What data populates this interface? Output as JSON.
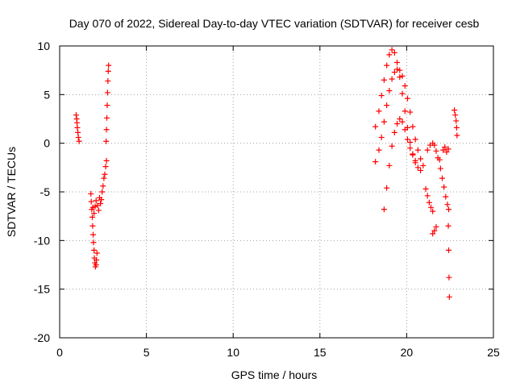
{
  "chart_data": {
    "type": "scatter",
    "title": "Day 070 of 2022, Sidereal Day-to-day VTEC variation (SDTVAR) for receiver cesb",
    "xlabel": "GPS time / hours",
    "ylabel": "SDTVAR / TECUs",
    "xlim": [
      0,
      25
    ],
    "ylim": [
      -20,
      10
    ],
    "xticks": [
      0,
      5,
      10,
      15,
      20,
      25
    ],
    "yticks": [
      -20,
      -15,
      -10,
      -5,
      0,
      5,
      10
    ],
    "grid": true,
    "marker": "+",
    "series": [
      {
        "name": "SDTVAR",
        "color": "#ff0000",
        "points": [
          [
            0.95,
            2.9
          ],
          [
            0.98,
            2.5
          ],
          [
            1.0,
            2.1
          ],
          [
            1.02,
            1.6
          ],
          [
            1.05,
            1.1
          ],
          [
            1.08,
            0.6
          ],
          [
            1.12,
            0.2
          ],
          [
            1.8,
            -5.2
          ],
          [
            1.82,
            -6.0
          ],
          [
            1.85,
            -6.8
          ],
          [
            1.88,
            -7.6
          ],
          [
            1.9,
            -8.5
          ],
          [
            1.93,
            -9.4
          ],
          [
            1.95,
            -10.2
          ],
          [
            1.98,
            -11.0
          ],
          [
            2.0,
            -11.8
          ],
          [
            2.03,
            -12.3
          ],
          [
            2.06,
            -12.7
          ],
          [
            2.1,
            -12.5
          ],
          [
            2.12,
            -12.0
          ],
          [
            2.15,
            -11.3
          ],
          [
            1.92,
            -6.6
          ],
          [
            1.98,
            -7.2
          ],
          [
            2.04,
            -6.5
          ],
          [
            2.1,
            -5.9
          ],
          [
            2.18,
            -6.4
          ],
          [
            2.25,
            -6.9
          ],
          [
            2.3,
            -5.6
          ],
          [
            2.35,
            -6.2
          ],
          [
            2.4,
            -5.8
          ],
          [
            2.45,
            -5.0
          ],
          [
            2.5,
            -4.4
          ],
          [
            2.55,
            -3.6
          ],
          [
            2.6,
            -3.2
          ],
          [
            2.65,
            -2.4
          ],
          [
            2.7,
            -1.8
          ],
          [
            2.68,
            0.2
          ],
          [
            2.7,
            1.4
          ],
          [
            2.72,
            2.6
          ],
          [
            2.74,
            3.9
          ],
          [
            2.76,
            5.2
          ],
          [
            2.78,
            6.4
          ],
          [
            2.8,
            7.4
          ],
          [
            2.82,
            8.0
          ],
          [
            18.2,
            -1.9
          ],
          [
            18.4,
            -0.7
          ],
          [
            18.55,
            0.6
          ],
          [
            18.7,
            2.2
          ],
          [
            18.85,
            3.9
          ],
          [
            19.0,
            5.4
          ],
          [
            19.15,
            6.6
          ],
          [
            19.3,
            7.3
          ],
          [
            19.45,
            7.6
          ],
          [
            19.6,
            7.5
          ],
          [
            19.75,
            6.9
          ],
          [
            19.9,
            5.9
          ],
          [
            20.05,
            4.6
          ],
          [
            20.2,
            3.2
          ],
          [
            20.35,
            1.7
          ],
          [
            20.5,
            0.4
          ],
          [
            20.65,
            -0.7
          ],
          [
            20.8,
            -1.6
          ],
          [
            20.95,
            -2.3
          ],
          [
            18.2,
            1.7
          ],
          [
            18.4,
            3.3
          ],
          [
            18.55,
            4.9
          ],
          [
            18.7,
            6.5
          ],
          [
            18.85,
            8.0
          ],
          [
            19.0,
            9.1
          ],
          [
            19.15,
            9.6
          ],
          [
            19.3,
            9.3
          ],
          [
            19.45,
            8.3
          ],
          [
            19.6,
            6.8
          ],
          [
            19.75,
            5.1
          ],
          [
            19.9,
            3.3
          ],
          [
            20.05,
            1.6
          ],
          [
            20.2,
            0.1
          ],
          [
            20.35,
            -1.1
          ],
          [
            20.5,
            -2.0
          ],
          [
            20.65,
            -2.5
          ],
          [
            20.8,
            -2.8
          ],
          [
            18.7,
            -6.8
          ],
          [
            18.85,
            -4.6
          ],
          [
            19.0,
            -2.3
          ],
          [
            19.15,
            -0.3
          ],
          [
            19.3,
            1.1
          ],
          [
            19.45,
            2.0
          ],
          [
            19.6,
            2.5
          ],
          [
            19.75,
            2.2
          ],
          [
            19.9,
            1.4
          ],
          [
            20.05,
            0.4
          ],
          [
            20.2,
            -0.5
          ],
          [
            20.35,
            -1.2
          ],
          [
            20.5,
            -1.8
          ],
          [
            21.1,
            -4.7
          ],
          [
            21.2,
            -5.4
          ],
          [
            21.3,
            -6.1
          ],
          [
            21.4,
            -6.6
          ],
          [
            21.5,
            -7.0
          ],
          [
            21.2,
            -0.7
          ],
          [
            21.35,
            -0.2
          ],
          [
            21.5,
            0.0
          ],
          [
            21.6,
            -0.2
          ],
          [
            21.7,
            -0.8
          ],
          [
            21.8,
            -1.5
          ],
          [
            21.5,
            -9.3
          ],
          [
            21.6,
            -9.0
          ],
          [
            21.7,
            -8.6
          ],
          [
            21.9,
            -1.7
          ],
          [
            21.95,
            -2.6
          ],
          [
            22.05,
            -3.6
          ],
          [
            22.15,
            -4.5
          ],
          [
            22.25,
            -5.5
          ],
          [
            22.35,
            -6.3
          ],
          [
            22.42,
            -6.8
          ],
          [
            22.1,
            -0.7
          ],
          [
            22.2,
            -0.4
          ],
          [
            22.3,
            -0.9
          ],
          [
            22.4,
            -0.6
          ],
          [
            22.4,
            -8.5
          ],
          [
            22.42,
            -11.0
          ],
          [
            22.44,
            -13.8
          ],
          [
            22.46,
            -15.8
          ],
          [
            22.75,
            3.4
          ],
          [
            22.8,
            2.9
          ],
          [
            22.85,
            2.3
          ],
          [
            22.88,
            1.6
          ],
          [
            22.9,
            0.8
          ]
        ]
      }
    ]
  }
}
